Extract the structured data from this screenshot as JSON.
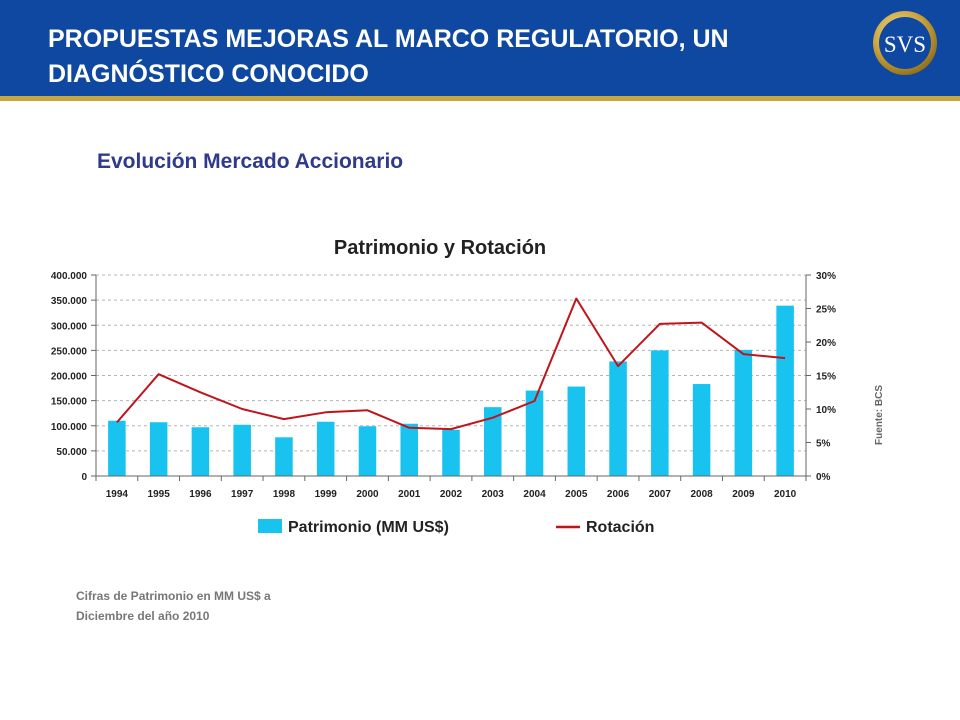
{
  "header": {
    "title_line1": "PROPUESTAS MEJORAS AL MARCO REGULATORIO, UN",
    "title_line2": "DIAGNÓSTICO CONOCIDO",
    "logo_text": "SVS"
  },
  "subtitle": "Evolución Mercado Accionario",
  "source_note": "Fuente: BCS",
  "footnote": {
    "line1": "Cifras de Patrimonio en MM US$ a",
    "line2": "Diciembre del año 2010"
  },
  "colors": {
    "header_blue": "#0f48a0",
    "gold": "#c9a740",
    "bar": "#19c3f0",
    "line": "#c0141c"
  },
  "chart_data": {
    "type": "bar",
    "title": "Patrimonio y Rotación",
    "categories": [
      "1994",
      "1995",
      "1996",
      "1997",
      "1998",
      "1999",
      "2000",
      "2001",
      "2002",
      "2003",
      "2004",
      "2005",
      "2006",
      "2007",
      "2008",
      "2009",
      "2010"
    ],
    "series": [
      {
        "name": "Patrimonio (MM US$)",
        "type": "bar",
        "axis": "left",
        "values": [
          110000,
          107000,
          97000,
          102000,
          77000,
          108000,
          99000,
          104000,
          92000,
          137000,
          170000,
          178000,
          228000,
          250000,
          183000,
          251000,
          339000
        ]
      },
      {
        "name": "Rotación",
        "type": "line",
        "axis": "right",
        "values": [
          8.0,
          15.2,
          12.5,
          10.0,
          8.5,
          9.5,
          9.8,
          7.2,
          7.0,
          8.7,
          11.2,
          26.5,
          16.4,
          22.7,
          22.9,
          18.2,
          17.6
        ]
      }
    ],
    "y_left": {
      "range": [
        0,
        400000
      ],
      "ticks": [
        0,
        50000,
        100000,
        150000,
        200000,
        250000,
        300000,
        350000,
        400000
      ],
      "tick_labels": [
        "0",
        "50.000",
        "100.000",
        "150.000",
        "200.000",
        "250.000",
        "300.000",
        "350.000",
        "400.000"
      ]
    },
    "y_right": {
      "range": [
        0,
        30
      ],
      "ticks": [
        0,
        5,
        10,
        15,
        20,
        25,
        30
      ],
      "tick_labels": [
        "0%",
        "5%",
        "10%",
        "15%",
        "20%",
        "25%",
        "30%"
      ]
    },
    "grid": true,
    "legend_position": "bottom"
  }
}
